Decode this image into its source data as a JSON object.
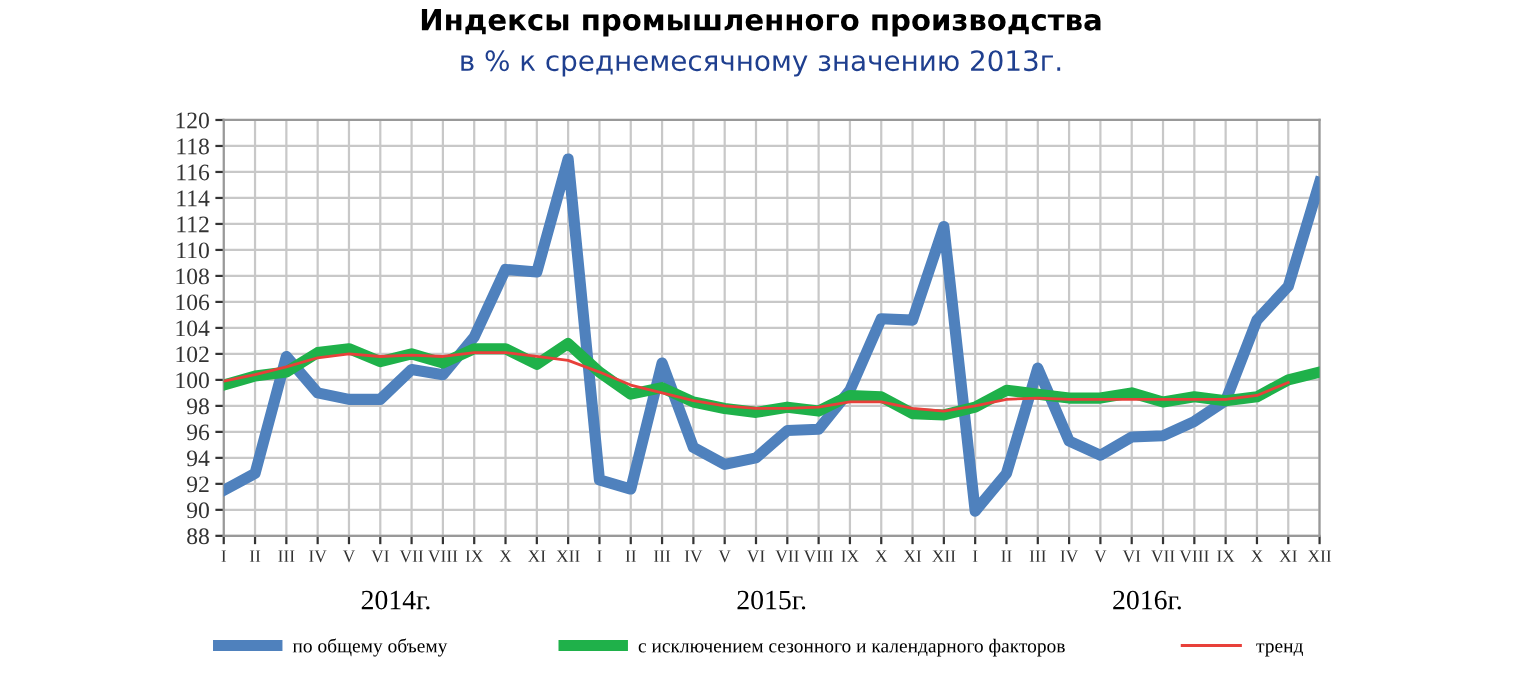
{
  "chart_data": {
    "type": "line",
    "title": "Индексы промышленного производства",
    "subtitle": "в % к среднемесячному значению 2013г.",
    "categories": [
      "I",
      "II",
      "III",
      "IV",
      "V",
      "VI",
      "VII",
      "VIII",
      "IX",
      "X",
      "XI",
      "XII",
      "I",
      "II",
      "III",
      "IV",
      "V",
      "VI",
      "VII",
      "VIII",
      "IX",
      "X",
      "XI",
      "XII",
      "I",
      "II",
      "III",
      "IV",
      "V",
      "VI",
      "VII",
      "VIII",
      "IX",
      "X",
      "XI",
      "XII"
    ],
    "series": [
      {
        "name": "по общему объему",
        "color": "#4f81bd",
        "values": [
          91.5,
          92.8,
          101.8,
          99.0,
          98.5,
          98.5,
          100.8,
          100.4,
          103.3,
          108.5,
          108.3,
          117.0,
          92.3,
          91.6,
          101.3,
          94.8,
          93.5,
          94.0,
          96.1,
          96.2,
          99.2,
          104.7,
          104.6,
          111.8,
          89.9,
          92.8,
          100.9,
          95.3,
          94.2,
          95.6,
          95.7,
          96.8,
          98.4,
          104.6,
          107.2,
          115.2
        ]
      },
      {
        "name": "с исключением сезонного и календарного факторов",
        "color": "#1fb14a",
        "values": [
          99.6,
          100.3,
          100.6,
          102.1,
          102.4,
          101.4,
          102.0,
          101.3,
          102.4,
          102.4,
          101.2,
          102.8,
          100.6,
          98.9,
          99.4,
          98.3,
          97.8,
          97.5,
          97.9,
          97.6,
          98.8,
          98.7,
          97.4,
          97.3,
          97.9,
          99.2,
          98.9,
          98.6,
          98.6,
          99.0,
          98.3,
          98.7,
          98.4,
          98.7,
          100.0,
          100.6
        ]
      },
      {
        "name": "тренд",
        "color": "#e8403a",
        "values": [
          99.9,
          100.4,
          101.0,
          101.7,
          102.0,
          101.8,
          101.9,
          101.8,
          102.1,
          102.1,
          101.8,
          101.5,
          100.6,
          99.6,
          99.0,
          98.4,
          98.0,
          97.8,
          97.8,
          97.9,
          98.3,
          98.3,
          97.8,
          97.6,
          98.0,
          98.5,
          98.6,
          98.5,
          98.5,
          98.5,
          98.5,
          98.5,
          98.5,
          98.8,
          99.8,
          null
        ]
      }
    ],
    "annotations": [
      "2014г.",
      "2015г.",
      "2016г."
    ],
    "ylim": [
      88,
      120
    ],
    "yticks": [
      88,
      90,
      92,
      94,
      96,
      98,
      100,
      102,
      104,
      106,
      108,
      110,
      112,
      114,
      116,
      118,
      120
    ],
    "grid": true,
    "legend": "bottom",
    "line_style": "solid",
    "marker": "none"
  }
}
